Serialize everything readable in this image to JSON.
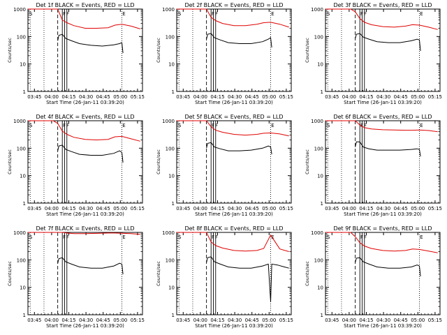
{
  "x_axis_label": "Start Time (26-Jan-11 03:39:20)",
  "y_axis_label": "Counts/sec",
  "x_tick_labels": [
    "03:45",
    "04:00",
    "04:15",
    "04:30",
    "04:45",
    "05:00",
    "05:15"
  ],
  "y_tick_labels": [
    "1",
    "10",
    "100",
    "1000"
  ],
  "colors": {
    "events": "#000000",
    "lld": "#e00000",
    "axes": "#000000"
  },
  "chart_data": [
    {
      "type": "line",
      "title": "Det 1f BLACK = Events, RED = LLD",
      "xlabel": "Start Time (26-Jan-11 03:39:20)",
      "ylabel": "Counts/sec",
      "x_unit": "minutes after 03:39:20",
      "xlim": [
        0,
        100
      ],
      "ylim": [
        1,
        1000
      ],
      "y_scale": "log",
      "annotations": [
        "E"
      ],
      "series": [
        {
          "name": "Events",
          "x": [
            26,
            27,
            30,
            33,
            38,
            45,
            55,
            65,
            75,
            80,
            82,
            83
          ],
          "y": [
            70,
            110,
            120,
            85,
            70,
            55,
            48,
            45,
            50,
            55,
            60,
            25
          ]
        },
        {
          "name": "LLD",
          "x": [
            0,
            5,
            10,
            16,
            22,
            26,
            30,
            34,
            40,
            50,
            60,
            70,
            76,
            82,
            90,
            98
          ],
          "y": [
            1000,
            1000,
            1000,
            1000,
            1000,
            1000,
            400,
            320,
            250,
            200,
            200,
            210,
            260,
            280,
            240,
            190
          ]
        }
      ]
    },
    {
      "type": "line",
      "title": "Det 2f BLACK = Events, RED = LLD",
      "xlabel": "Start Time (26-Jan-11 03:39:20)",
      "ylabel": "Counts/sec",
      "x_unit": "minutes after 03:39:20",
      "xlim": [
        0,
        100
      ],
      "ylim": [
        1,
        1000
      ],
      "y_scale": "log",
      "annotations": [
        "E"
      ],
      "series": [
        {
          "name": "Events",
          "x": [
            26,
            27,
            30,
            33,
            38,
            45,
            55,
            65,
            75,
            80,
            82,
            83
          ],
          "y": [
            80,
            120,
            130,
            90,
            75,
            60,
            55,
            55,
            65,
            80,
            90,
            40
          ]
        },
        {
          "name": "LLD",
          "x": [
            0,
            5,
            10,
            16,
            22,
            26,
            30,
            34,
            40,
            50,
            60,
            70,
            76,
            82,
            90,
            98
          ],
          "y": [
            1000,
            1000,
            1000,
            1000,
            1000,
            1000,
            500,
            380,
            300,
            250,
            250,
            280,
            320,
            330,
            280,
            220
          ]
        }
      ]
    },
    {
      "type": "line",
      "title": "Det 3f BLACK = Events, RED = LLD",
      "xlabel": "Start Time (26-Jan-11 03:39:20)",
      "ylabel": "Counts/sec",
      "x_unit": "minutes after 03:39:20",
      "xlim": [
        0,
        100
      ],
      "ylim": [
        1,
        1000
      ],
      "y_scale": "log",
      "annotations": [
        "E"
      ],
      "series": [
        {
          "name": "Events",
          "x": [
            26,
            27,
            30,
            33,
            38,
            45,
            55,
            65,
            75,
            80,
            82,
            83
          ],
          "y": [
            85,
            120,
            130,
            95,
            80,
            65,
            60,
            60,
            70,
            80,
            75,
            30
          ]
        },
        {
          "name": "LLD",
          "x": [
            0,
            5,
            10,
            16,
            22,
            26,
            30,
            34,
            40,
            50,
            60,
            70,
            76,
            82,
            90,
            98
          ],
          "y": [
            1000,
            1000,
            1000,
            1000,
            1000,
            800,
            450,
            330,
            270,
            230,
            220,
            240,
            270,
            260,
            220,
            180
          ]
        }
      ]
    },
    {
      "type": "line",
      "title": "Det 4f BLACK = Events, RED = LLD",
      "xlabel": "Start Time (26-Jan-11 03:39:20)",
      "ylabel": "Counts/sec",
      "x_unit": "minutes after 03:39:20",
      "xlim": [
        0,
        100
      ],
      "ylim": [
        1,
        1000
      ],
      "y_scale": "log",
      "annotations": [
        "E"
      ],
      "series": [
        {
          "name": "Events",
          "x": [
            26,
            27,
            30,
            33,
            38,
            45,
            55,
            65,
            75,
            80,
            82,
            83
          ],
          "y": [
            80,
            120,
            130,
            90,
            75,
            60,
            55,
            55,
            65,
            80,
            70,
            30
          ]
        },
        {
          "name": "LLD",
          "x": [
            0,
            5,
            10,
            16,
            22,
            26,
            30,
            34,
            40,
            50,
            60,
            70,
            76,
            82,
            90,
            98
          ],
          "y": [
            1000,
            1000,
            1000,
            1000,
            1000,
            800,
            420,
            320,
            250,
            210,
            200,
            210,
            260,
            270,
            220,
            180
          ]
        }
      ]
    },
    {
      "type": "line",
      "title": "Det 5f BLACK = Events, RED = LLD",
      "xlabel": "Start Time (26-Jan-11 03:39:20)",
      "ylabel": "Counts/sec",
      "x_unit": "minutes after 03:39:20",
      "xlim": [
        0,
        100
      ],
      "ylim": [
        1,
        1000
      ],
      "y_scale": "log",
      "annotations": [
        "E"
      ],
      "series": [
        {
          "name": "Events",
          "x": [
            26,
            27,
            30,
            33,
            38,
            45,
            55,
            65,
            75,
            80,
            82,
            83
          ],
          "y": [
            100,
            150,
            160,
            110,
            95,
            80,
            80,
            85,
            100,
            120,
            110,
            60
          ]
        },
        {
          "name": "LLD",
          "x": [
            0,
            5,
            10,
            16,
            22,
            26,
            30,
            34,
            40,
            50,
            60,
            70,
            76,
            82,
            90,
            98
          ],
          "y": [
            1000,
            1000,
            1000,
            1000,
            1000,
            1000,
            600,
            450,
            380,
            320,
            300,
            320,
            350,
            360,
            330,
            280
          ]
        }
      ]
    },
    {
      "type": "line",
      "title": "Det 6f BLACK = Events, RED = LLD",
      "xlabel": "Start Time (26-Jan-11 03:39:20)",
      "ylabel": "Counts/sec",
      "x_unit": "minutes after 03:39:20",
      "xlim": [
        0,
        100
      ],
      "ylim": [
        1,
        1000
      ],
      "y_scale": "log",
      "annotations": [
        "E"
      ],
      "series": [
        {
          "name": "Events",
          "x": [
            26,
            27,
            30,
            33,
            38,
            45,
            55,
            65,
            75,
            80,
            82,
            83
          ],
          "y": [
            110,
            170,
            170,
            110,
            95,
            85,
            85,
            85,
            90,
            95,
            90,
            50
          ]
        },
        {
          "name": "LLD",
          "x": [
            0,
            5,
            10,
            16,
            22,
            26,
            30,
            34,
            40,
            50,
            60,
            70,
            76,
            82,
            90,
            98
          ],
          "y": [
            1000,
            1000,
            1000,
            1000,
            1000,
            1000,
            700,
            560,
            500,
            470,
            460,
            450,
            450,
            460,
            440,
            400
          ]
        }
      ]
    },
    {
      "type": "line",
      "title": "Det 7f BLACK = Events, RED = LLD",
      "xlabel": "Start Time (26-Jan-11 03:39:20)",
      "ylabel": "Counts/sec",
      "x_unit": "minutes after 03:39:20",
      "xlim": [
        0,
        100
      ],
      "ylim": [
        1,
        1000
      ],
      "y_scale": "log",
      "annotations": [
        "E"
      ],
      "series": [
        {
          "name": "Events",
          "x": [
            26,
            27,
            30,
            33,
            38,
            45,
            55,
            65,
            75,
            80,
            82,
            83
          ],
          "y": [
            75,
            110,
            120,
            85,
            70,
            55,
            50,
            50,
            60,
            75,
            70,
            30
          ]
        },
        {
          "name": "LLD",
          "x": [
            0,
            5,
            10,
            16,
            22,
            26,
            30,
            34,
            40,
            50,
            60,
            70,
            76,
            82,
            90,
            98
          ],
          "y": [
            1000,
            1000,
            1000,
            1000,
            1000,
            1000,
            1000,
            950,
            900,
            900,
            920,
            950,
            950,
            930,
            900,
            850
          ]
        }
      ]
    },
    {
      "type": "line",
      "title": "Det 8f BLACK = Events, RED = LLD",
      "xlabel": "Start Time (26-Jan-11 03:39:20)",
      "ylabel": "Counts/sec",
      "x_unit": "minutes after 03:39:20",
      "xlim": [
        0,
        100
      ],
      "ylim": [
        1,
        1000
      ],
      "y_scale": "log",
      "annotations": [
        "E"
      ],
      "series": [
        {
          "name": "Events",
          "x": [
            26,
            27,
            30,
            33,
            38,
            45,
            55,
            65,
            75,
            80,
            82,
            83,
            88,
            94,
            98
          ],
          "y": [
            80,
            120,
            130,
            85,
            70,
            55,
            50,
            50,
            60,
            70,
            3,
            70,
            65,
            55,
            50
          ]
        },
        {
          "name": "LLD",
          "x": [
            0,
            5,
            10,
            16,
            22,
            26,
            30,
            34,
            40,
            50,
            60,
            70,
            76,
            82,
            90,
            98
          ],
          "y": [
            1000,
            1000,
            1000,
            1000,
            1000,
            1000,
            450,
            330,
            270,
            220,
            210,
            220,
            260,
            800,
            250,
            200
          ]
        }
      ]
    },
    {
      "type": "line",
      "title": "Det 9f BLACK = Events, RED = LLD",
      "xlabel": "Start Time (26-Jan-11 03:39:20)",
      "ylabel": "Counts/sec",
      "x_unit": "minutes after 03:39:20",
      "xlim": [
        0,
        100
      ],
      "ylim": [
        1,
        1000
      ],
      "y_scale": "log",
      "annotations": [
        "E"
      ],
      "series": [
        {
          "name": "Events",
          "x": [
            26,
            27,
            30,
            33,
            38,
            45,
            55,
            65,
            75,
            80,
            82,
            83
          ],
          "y": [
            80,
            115,
            120,
            85,
            70,
            55,
            50,
            50,
            55,
            65,
            60,
            25
          ]
        },
        {
          "name": "LLD",
          "x": [
            0,
            5,
            10,
            16,
            22,
            26,
            30,
            34,
            40,
            50,
            60,
            70,
            76,
            82,
            90,
            98
          ],
          "y": [
            1000,
            1000,
            1000,
            1000,
            1000,
            700,
            420,
            320,
            260,
            220,
            210,
            220,
            250,
            240,
            210,
            180
          ]
        }
      ]
    }
  ]
}
